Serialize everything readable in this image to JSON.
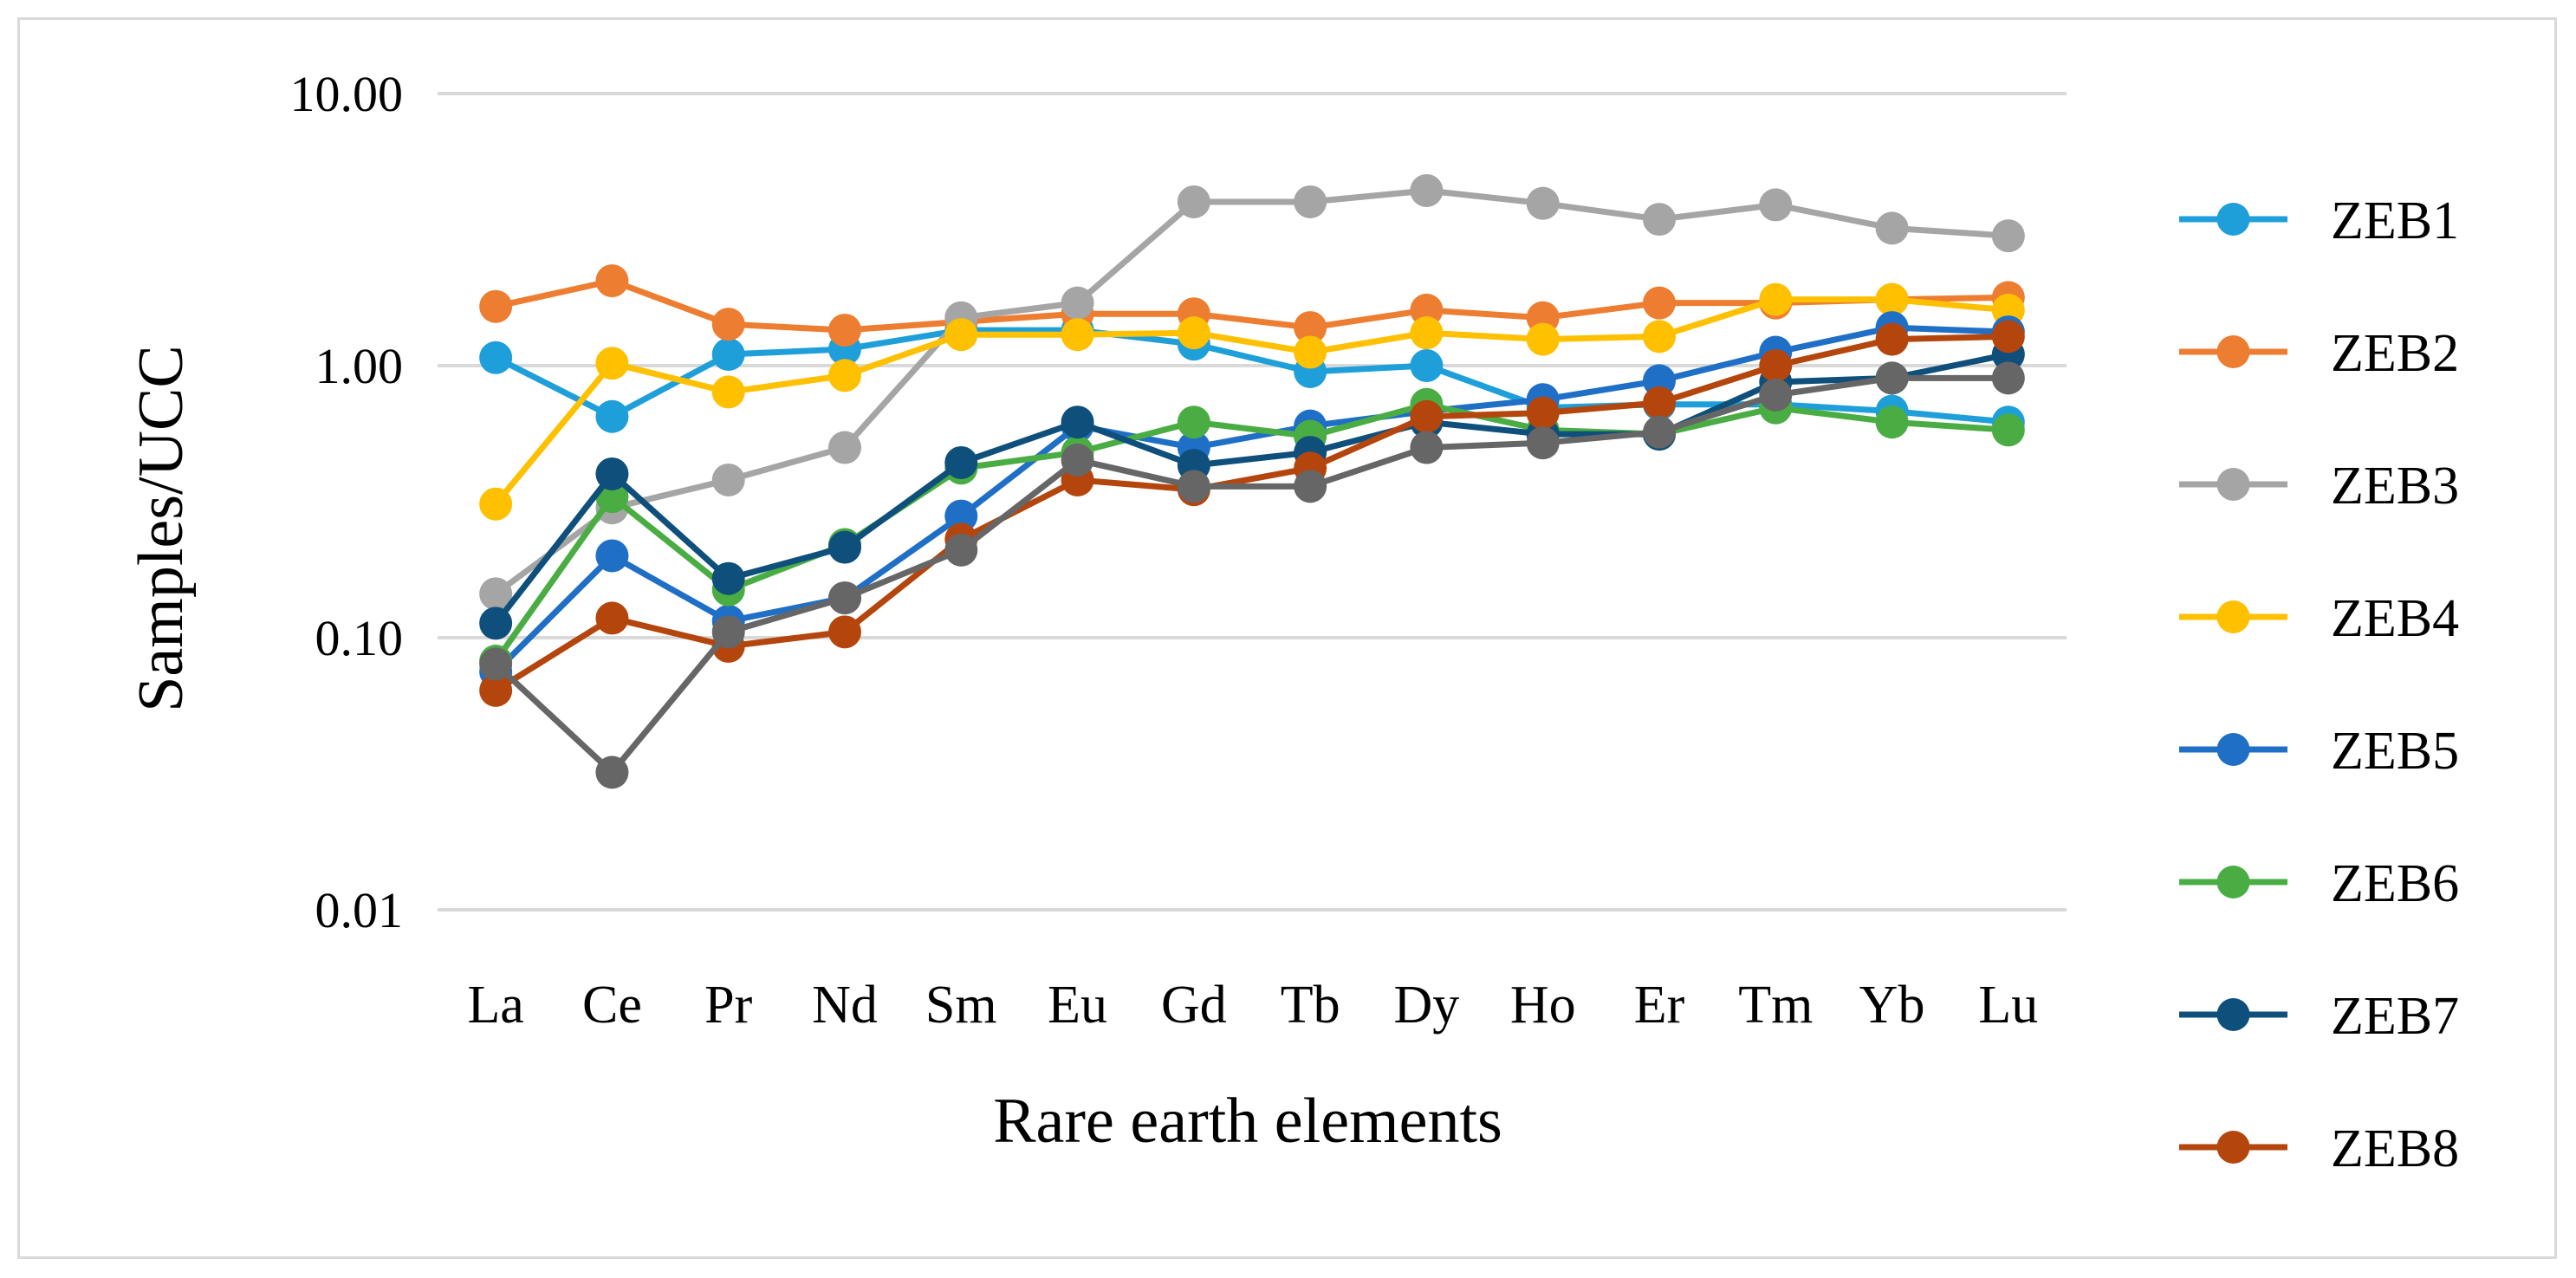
{
  "chart_data": {
    "type": "line",
    "title": "",
    "xlabel": "Rare earth elements",
    "ylabel": "Samples/UCC",
    "yscale": "log",
    "ylim": [
      0.01,
      10
    ],
    "yticks": [
      "10.00",
      "1.00",
      "0.10",
      "0.01"
    ],
    "ytick_values": [
      10,
      1,
      0.1,
      0.01
    ],
    "grid": true,
    "legend_position": "right",
    "categories": [
      "La",
      "Ce",
      "Pr",
      "Nd",
      "Sm",
      "Eu",
      "Gd",
      "Tb",
      "Dy",
      "Ho",
      "Er",
      "Tm",
      "Yb",
      "Lu"
    ],
    "series": [
      {
        "name": "ZEB1",
        "color": "#1f9fd9",
        "values": [
          1.07,
          0.65,
          1.1,
          1.15,
          1.35,
          1.35,
          1.2,
          0.95,
          1.0,
          0.7,
          0.72,
          0.72,
          0.68,
          0.62
        ]
      },
      {
        "name": "ZEB2",
        "color": "#ed7d31",
        "values": [
          1.65,
          2.05,
          1.42,
          1.35,
          1.45,
          1.55,
          1.55,
          1.38,
          1.6,
          1.5,
          1.7,
          1.7,
          1.75,
          1.78
        ]
      },
      {
        "name": "ZEB3",
        "color": "#a5a5a5",
        "values": [
          0.145,
          0.3,
          0.38,
          0.5,
          1.5,
          1.7,
          4.0,
          4.0,
          4.4,
          3.95,
          3.45,
          3.9,
          3.2,
          3.0
        ]
      },
      {
        "name": "ZEB4",
        "color": "#ffc000",
        "values": [
          0.31,
          1.02,
          0.8,
          0.92,
          1.3,
          1.3,
          1.32,
          1.12,
          1.32,
          1.25,
          1.28,
          1.75,
          1.75,
          1.6
        ]
      },
      {
        "name": "ZEB5",
        "color": "#1f6fc7",
        "values": [
          0.075,
          0.2,
          0.115,
          0.14,
          0.28,
          0.6,
          0.5,
          0.6,
          0.68,
          0.75,
          0.88,
          1.12,
          1.38,
          1.33
        ]
      },
      {
        "name": "ZEB6",
        "color": "#4aad43",
        "values": [
          0.082,
          0.33,
          0.15,
          0.22,
          0.42,
          0.48,
          0.62,
          0.55,
          0.72,
          0.58,
          0.56,
          0.7,
          0.62,
          0.58
        ]
      },
      {
        "name": "ZEB7",
        "color": "#0e4f7c",
        "values": [
          0.113,
          0.4,
          0.165,
          0.215,
          0.44,
          0.62,
          0.43,
          0.48,
          0.62,
          0.56,
          0.56,
          0.87,
          0.9,
          1.1
        ]
      },
      {
        "name": "ZEB8",
        "color": "#b4460d",
        "values": [
          0.064,
          0.118,
          0.093,
          0.105,
          0.23,
          0.38,
          0.35,
          0.42,
          0.65,
          0.67,
          0.73,
          1.0,
          1.25,
          1.28
        ]
      },
      {
        "name": "",
        "color": "#666666",
        "values": [
          0.08,
          0.032,
          0.105,
          0.14,
          0.21,
          0.45,
          0.36,
          0.36,
          0.5,
          0.52,
          0.57,
          0.78,
          0.9,
          0.9
        ]
      }
    ]
  }
}
